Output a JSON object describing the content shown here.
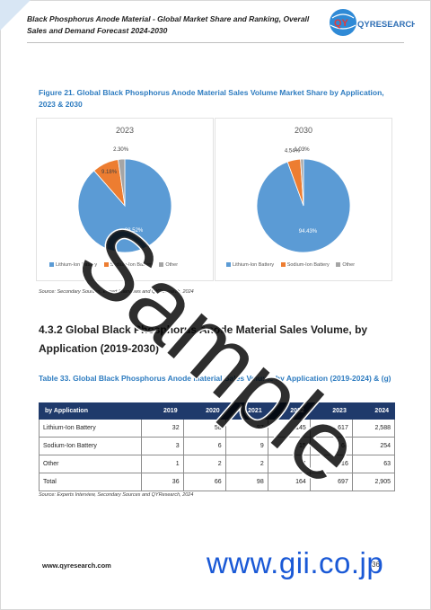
{
  "header": {
    "title": "Black Phosphorus Anode Material - Global Market Share and Ranking, Overall Sales and Demand Forecast 2024-2030",
    "logo_text": "QYRESEARCH"
  },
  "figure": {
    "title": "Figure 21.   Global Black Phosphorus Anode Material Sales Volume Market Share by Application, 2023 & 2030",
    "source": "Source: Secondary Sources, Expert Interviews and QYResearch, 2024"
  },
  "chart_data": [
    {
      "type": "pie",
      "title": "2023",
      "labels": [
        "Lithium-Ion Battery",
        "Sodium-Ion Battery",
        "Other"
      ],
      "values": [
        88.52,
        9.18,
        2.3
      ],
      "value_labels": [
        "88.52%",
        "9.18%",
        "2.30%"
      ],
      "colors": [
        "#5b9bd5",
        "#ed7d31",
        "#a5a5a5"
      ],
      "legend": "bottom"
    },
    {
      "type": "pie",
      "title": "2030",
      "labels": [
        "Lithium-Ion Battery",
        "Sodium-Ion Battery",
        "Other"
      ],
      "values": [
        94.43,
        4.54,
        1.03
      ],
      "value_labels": [
        "94.43%",
        "4.54%",
        "1.03%"
      ],
      "colors": [
        "#5b9bd5",
        "#ed7d31",
        "#a5a5a5"
      ],
      "legend": "bottom"
    }
  ],
  "section": {
    "title": "4.3.2  Global Black Phosphorus Anode Material Sales Volume, by Application (2019-2030)"
  },
  "table": {
    "title": "Table 33.   Global Black Phosphorus Anode Material Sales Volume by Application (2019-2024) & (g)",
    "headers": [
      "by Application",
      "2019",
      "2020",
      "2021",
      "2022",
      "2023",
      "2024"
    ],
    "rows": [
      [
        "Lithium-Ion Battery",
        "32",
        "58",
        "87",
        "145",
        "617",
        "2,588"
      ],
      [
        "Sodium-Ion Battery",
        "3",
        "6",
        "9",
        "15",
        "64",
        "254"
      ],
      [
        "Other",
        "1",
        "2",
        "2",
        "4",
        "16",
        "63"
      ],
      [
        "Total",
        "36",
        "66",
        "98",
        "164",
        "697",
        "2,905"
      ]
    ],
    "source": "Source: Experts Interview, Secondary Sources and QYResearch, 2024"
  },
  "footer": {
    "url": "www.qyresearch.com",
    "page": "36"
  },
  "watermarks": {
    "sample": "Sample",
    "gii": "www.gii.co.jp"
  }
}
